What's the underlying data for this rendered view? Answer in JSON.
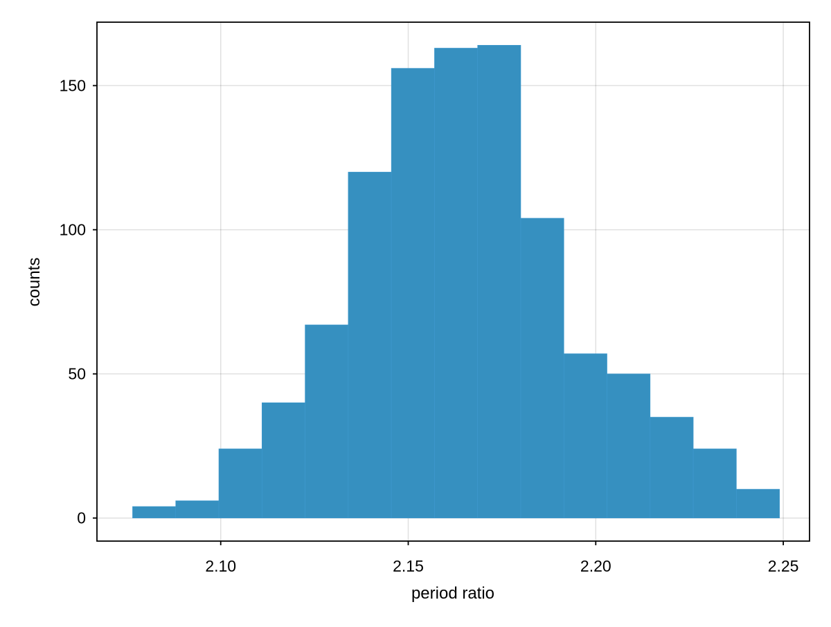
{
  "chart_data": {
    "type": "bar",
    "title": "",
    "xlabel": "period ratio",
    "ylabel": "counts",
    "xlim": [
      2.067,
      2.257
    ],
    "ylim": [
      -8,
      172
    ],
    "x_ticks": [
      2.1,
      2.15,
      2.2,
      2.25
    ],
    "x_tick_labels": [
      "2.10",
      "2.15",
      "2.20",
      "2.25"
    ],
    "y_ticks": [
      0,
      50,
      100,
      150
    ],
    "y_tick_labels": [
      "0",
      "50",
      "100",
      "150"
    ],
    "grid": true,
    "legend": "none",
    "bar_color": "#3690c0",
    "bins": {
      "edges": [
        2.0765,
        2.088,
        2.0995,
        2.111,
        2.1225,
        2.134,
        2.1455,
        2.157,
        2.1685,
        2.18,
        2.1915,
        2.203,
        2.2145,
        2.226,
        2.2375,
        2.249
      ],
      "counts": [
        4,
        6,
        24,
        40,
        67,
        120,
        156,
        163,
        164,
        104,
        57,
        50,
        35,
        24,
        10
      ]
    }
  }
}
